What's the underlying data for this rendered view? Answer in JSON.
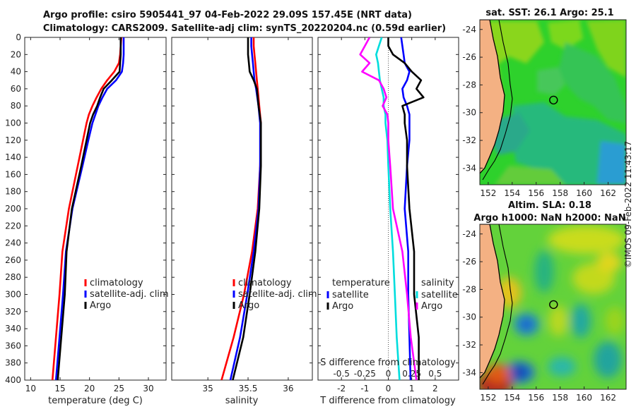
{
  "title": {
    "line1": "Argo profile: csiro 5905441_97 04-Feb-2022 29.09S 157.45E (NRT data)",
    "line2": "Climatology: CARS2009. Satellite-adj clim: synTS_20220204.nc (0.59d earlier)"
  },
  "timestamp": "©IMOS 09-Feb-2022 11:43:17",
  "colors": {
    "climatology": "#ff0000",
    "satellite": "#0000ff",
    "argo": "#000000",
    "cyan": "#00dddd",
    "magenta": "#ff00ff"
  },
  "chart_data": [
    {
      "type": "line",
      "name": "temperature-profile",
      "xlabel": "temperature (deg C)",
      "ylabel": "",
      "xlim": [
        9,
        33
      ],
      "ylim": [
        0,
        400
      ],
      "x_ticks": [
        10,
        15,
        20,
        25,
        30
      ],
      "y_ticks": [
        0,
        20,
        40,
        60,
        80,
        100,
        120,
        140,
        160,
        180,
        200,
        220,
        240,
        260,
        280,
        300,
        320,
        340,
        360,
        380,
        400
      ],
      "depth": [
        0,
        10,
        20,
        30,
        40,
        50,
        60,
        70,
        80,
        90,
        100,
        120,
        150,
        200,
        250,
        300,
        350,
        400
      ],
      "series": [
        {
          "name": "climatology",
          "color": "#ff0000",
          "values": [
            25.4,
            25.3,
            25.2,
            25.0,
            24.2,
            23.0,
            22.0,
            21.2,
            20.5,
            19.9,
            19.5,
            18.9,
            18.0,
            16.5,
            15.4,
            14.9,
            14.3,
            13.7
          ]
        },
        {
          "name": "satellite-adj. clim",
          "color": "#0000ff",
          "values": [
            25.8,
            25.8,
            25.8,
            25.7,
            25.5,
            24.5,
            23.0,
            22.2,
            21.5,
            21.0,
            20.5,
            19.8,
            18.8,
            17.1,
            16.0,
            15.5,
            14.9,
            14.3
          ]
        },
        {
          "name": "Argo",
          "color": "#000000",
          "values": [
            25.3,
            25.3,
            25.3,
            25.2,
            25.1,
            23.8,
            22.4,
            21.8,
            21.3,
            20.6,
            20.1,
            19.5,
            18.6,
            17.0,
            16.1,
            15.8,
            15.2,
            14.6
          ]
        }
      ],
      "legend": [
        "climatology",
        "satellite-adj. clim",
        "Argo"
      ]
    },
    {
      "type": "line",
      "name": "salinity-profile",
      "xlabel": "salinity",
      "xlim": [
        34.55,
        36.3
      ],
      "ylim": [
        0,
        400
      ],
      "x_ticks": [
        35,
        35.5,
        36
      ],
      "depth": [
        0,
        10,
        20,
        30,
        40,
        50,
        60,
        80,
        100,
        120,
        150,
        200,
        250,
        300,
        350,
        400
      ],
      "series": [
        {
          "name": "climatology",
          "color": "#ff0000",
          "values": [
            35.57,
            35.57,
            35.58,
            35.59,
            35.6,
            35.61,
            35.62,
            35.64,
            35.66,
            35.66,
            35.65,
            35.62,
            35.55,
            35.45,
            35.32,
            35.17
          ]
        },
        {
          "name": "satellite-adj. clim",
          "color": "#0000ff",
          "values": [
            35.54,
            35.54,
            35.55,
            35.56,
            35.57,
            35.58,
            35.6,
            35.63,
            35.65,
            35.65,
            35.65,
            35.63,
            35.57,
            35.49,
            35.4,
            35.28
          ]
        },
        {
          "name": "Argo",
          "color": "#000000",
          "values": [
            35.5,
            35.5,
            35.5,
            35.51,
            35.52,
            35.57,
            35.61,
            35.63,
            35.66,
            35.66,
            35.66,
            35.64,
            35.59,
            35.52,
            35.44,
            35.31
          ]
        }
      ],
      "legend": [
        "climatology",
        "satellite-adj. clim",
        "Argo"
      ]
    },
    {
      "type": "line",
      "name": "difference-profile",
      "xlabel": "T difference from climatology",
      "xlabel_top": "S difference from climatology",
      "xlim": [
        -3,
        3
      ],
      "ylim": [
        0,
        400
      ],
      "x_ticks": [
        -2,
        -1,
        0,
        1,
        2
      ],
      "x_ticks_top": [
        "-0.5",
        "-0.25",
        "0",
        "0.25",
        "0.5"
      ],
      "depth": [
        0,
        10,
        20,
        30,
        40,
        50,
        60,
        70,
        80,
        90,
        100,
        120,
        150,
        200,
        250,
        300,
        350,
        400
      ],
      "series": [
        {
          "name": "temperature satellite",
          "color": "#0000ff",
          "values": [
            0.55,
            0.6,
            0.65,
            0.7,
            0.9,
            0.8,
            0.6,
            0.65,
            0.8,
            0.9,
            0.9,
            0.9,
            0.8,
            0.7,
            0.85,
            0.85,
            0.9,
            0.95
          ]
        },
        {
          "name": "temperature Argo",
          "color": "#000000",
          "values": [
            0,
            0,
            0.2,
            0.7,
            1.0,
            1.4,
            1.2,
            1.5,
            0.6,
            0.7,
            0.7,
            0.8,
            0.8,
            0.9,
            1.1,
            1.1,
            1.3,
            1.3
          ]
        },
        {
          "name": "salinity satellite",
          "color": "#00dddd",
          "values": [
            -0.07,
            -0.1,
            -0.13,
            -0.11,
            -0.1,
            -0.09,
            -0.07,
            -0.05,
            -0.05,
            -0.03,
            -0.03,
            -0.01,
            0.0,
            0.02,
            0.05,
            0.07,
            0.09,
            0.12
          ]
        },
        {
          "name": "salinity Argo",
          "color": "#ff00ff",
          "values": [
            -0.2,
            -0.25,
            -0.3,
            -0.2,
            -0.28,
            -0.1,
            -0.05,
            -0.02,
            -0.06,
            -0.01,
            0,
            0.0,
            0.02,
            0.05,
            0.15,
            0.2,
            0.24,
            0.3
          ]
        }
      ],
      "legend_left": {
        "title": "temperature",
        "items": [
          "satellite",
          "Argo"
        ]
      },
      "legend_right": {
        "title": "salinity",
        "items": [
          "satellite",
          "Argo"
        ]
      }
    },
    {
      "type": "heatmap",
      "name": "sst-map",
      "title": "sat. SST: 26.1 Argo: 25.1",
      "x_ticks": [
        152,
        154,
        156,
        158,
        160,
        162
      ],
      "y_ticks": [
        -24,
        -26,
        -28,
        -30,
        -32,
        -34
      ],
      "xlim": [
        151.3,
        163.5
      ],
      "ylim": [
        -35.2,
        -23.3
      ],
      "marker": {
        "lon": 157.45,
        "lat": -29.09
      }
    },
    {
      "type": "heatmap",
      "name": "sla-map",
      "title_line1": "Altim. SLA: 0.18",
      "title_line2": "Argo h1000: NaN h2000: NaN",
      "x_ticks": [
        152,
        154,
        156,
        158,
        160,
        162
      ],
      "y_ticks": [
        -24,
        -26,
        -28,
        -30,
        -32,
        -34
      ],
      "xlim": [
        151.3,
        163.5
      ],
      "ylim": [
        -35.2,
        -23.3
      ],
      "marker": {
        "lon": 157.45,
        "lat": -29.09
      }
    }
  ]
}
